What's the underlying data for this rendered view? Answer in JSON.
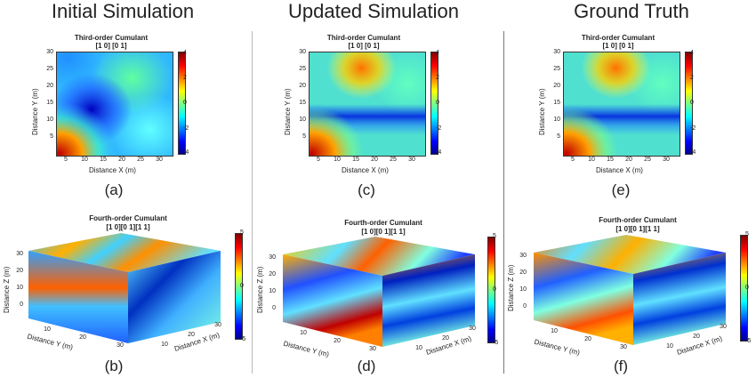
{
  "columns": [
    {
      "title": "Initial Simulation"
    },
    {
      "title": "Updated Simulation"
    },
    {
      "title": "Ground Truth"
    }
  ],
  "third_order": {
    "title_line1": "Third-order Cumulant",
    "title_line2": "[1 0] [0 1]",
    "x_label": "Distance X (m)",
    "y_label": "Distance Y (m)",
    "ticks": [
      "5",
      "10",
      "15",
      "20",
      "25",
      "30"
    ],
    "cbar_ticks": [
      "4",
      "2",
      "0",
      "-2",
      "-4"
    ]
  },
  "fourth_order": {
    "title_line1": "Fourth-order Cumulant",
    "title_line2": "[1 0][0 1][1 1]",
    "x_label": "Distance X (m)",
    "y_label": "Distance Y (m)",
    "z_label": "Distance Z (m)",
    "z_ticks": [
      "30",
      "20",
      "10",
      "0"
    ],
    "y_ticks": [
      "10",
      "20",
      "30"
    ],
    "x_ticks": [
      "10",
      "20",
      "30"
    ],
    "cbar_ticks": [
      "5",
      "0",
      "-5"
    ]
  },
  "panel_labels": [
    "(a)",
    "(b)",
    "(c)",
    "(d)",
    "(e)",
    "(f)"
  ]
}
